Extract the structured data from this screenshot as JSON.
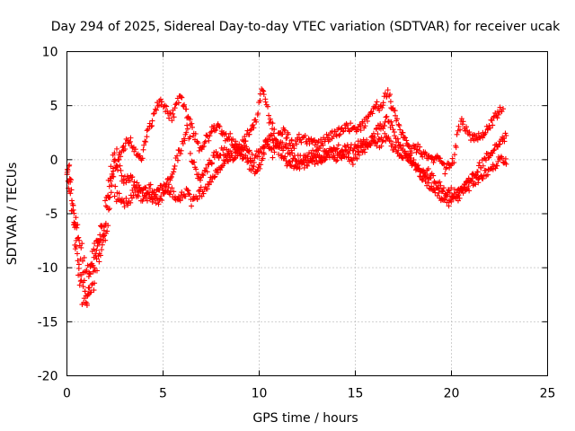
{
  "chart_data": {
    "type": "scatter",
    "title": "Day 294 of 2025, Sidereal Day-to-day VTEC variation (SDTVAR) for receiver ucak",
    "xlabel": "GPS time / hours",
    "ylabel": "SDTVAR / TECUs",
    "xlim": [
      0,
      25
    ],
    "ylim": [
      -20,
      10
    ],
    "xticks": [
      0,
      5,
      10,
      15,
      20,
      25
    ],
    "yticks": [
      -20,
      -15,
      -10,
      -5,
      0,
      5,
      10
    ],
    "xtick_labels": [
      "0",
      "5",
      "10",
      "15",
      "20",
      "25"
    ],
    "ytick_labels": [
      "-20",
      "-15",
      "-10",
      "-5",
      "0",
      "5",
      "10"
    ],
    "grid": true,
    "marker": "+",
    "color": "#ff0000",
    "series": [
      {
        "name": "SDTVAR",
        "trace_x": [
          0,
          0.15,
          0.3,
          0.45,
          0.6,
          0.75,
          0.9,
          1.05,
          1.2,
          1.35,
          1.5,
          1.7,
          1.9,
          2.1,
          2.3,
          2.5,
          2.7,
          2.9,
          3.1,
          3.3,
          3.5,
          3.7,
          3.9,
          4.1,
          4.3,
          4.5,
          4.7,
          4.9,
          5.1,
          5.3,
          5.5,
          5.7,
          5.9,
          6.1,
          6.3,
          6.5,
          6.7,
          6.9,
          7.1,
          7.3,
          7.5,
          7.7,
          7.9,
          8.1,
          8.3,
          8.5,
          8.7,
          8.9,
          9.1,
          9.3,
          9.5,
          9.7,
          9.9,
          10.1,
          10.3,
          10.5,
          10.7,
          10.9,
          11.1,
          11.3,
          11.5,
          11.7,
          11.9,
          12.1,
          12.3,
          12.5,
          12.7,
          12.9,
          13.1,
          13.3,
          13.5,
          13.7,
          13.9,
          14.1,
          14.3,
          14.5,
          14.7,
          14.9,
          15.1,
          15.3,
          15.5,
          15.7,
          15.9,
          16.1,
          16.3,
          16.5,
          16.7,
          16.9,
          17.1,
          17.3,
          17.5,
          17.7,
          17.9,
          18.1,
          18.3,
          18.5,
          18.7,
          18.9,
          19.1,
          19.3,
          19.5,
          19.7,
          19.9,
          20.1,
          20.3,
          20.5,
          20.7,
          20.9,
          21.1,
          21.3,
          21.5,
          21.7,
          21.9,
          22.1,
          22.3,
          22.5,
          22.7,
          22.9
        ],
        "trace_y": [
          -1.5,
          -2,
          -4.5,
          -7,
          -9,
          -10.5,
          -12,
          -12.5,
          -11,
          -10,
          -9,
          -7.5,
          -6.5,
          -4,
          -1.5,
          -1,
          -0.5,
          -2,
          -2,
          -1.5,
          -2,
          -2.5,
          -3,
          -3,
          -2.5,
          -3,
          -3,
          -2.5,
          -2.5,
          -2,
          -1,
          0,
          1,
          2,
          3,
          0,
          -1,
          -2,
          -1.5,
          -1,
          0,
          0.5,
          0.5,
          1,
          0.5,
          0.5,
          0,
          0.5,
          1,
          1.5,
          0.5,
          0,
          0.5,
          1,
          1.5,
          1,
          0.5,
          1.5,
          1.5,
          1,
          1,
          0.5,
          0,
          0,
          0,
          0,
          0.5,
          0.5,
          0.5,
          0.5,
          0.5,
          0.5,
          0.5,
          0,
          0.5,
          1,
          1,
          1,
          1.5,
          1.5,
          1.5,
          1.5,
          2,
          1.5,
          1.5,
          2,
          2,
          1.5,
          1,
          0.5,
          0,
          0,
          0,
          -0.5,
          -1,
          -1,
          -1,
          -1.5,
          -2,
          -2.5,
          -2.5,
          -3,
          -3,
          -3,
          -3.5,
          -3,
          -2.5,
          -2,
          -1.5,
          -1,
          -0.5,
          0,
          0.5,
          1,
          1,
          1.5,
          2,
          2
        ],
        "trace_y_alt": [
          -1.5,
          -3,
          -5,
          -8,
          -10,
          -12,
          -13,
          -13.5,
          -12,
          -11.5,
          -10,
          -9,
          -8.5,
          -6,
          -2,
          -3,
          -3.5,
          -4,
          -4,
          -3.5,
          -3,
          -3,
          -3.5,
          -3.5,
          -3.5,
          -3.5,
          -4,
          -3.5,
          -3,
          -3,
          -3,
          -3.5,
          -3.5,
          -3,
          -3,
          -4,
          -3.5,
          -3,
          -3,
          -2.5,
          -2,
          -1.5,
          -1,
          -0.5,
          0,
          0.5,
          1,
          1,
          0.5,
          0,
          -0.5,
          -1,
          -1,
          -0.5,
          1,
          2,
          2,
          1.5,
          0.5,
          0,
          -0.5,
          -0.5,
          -0.5,
          -0.5,
          -0.5,
          -0.5,
          0,
          0,
          0,
          0,
          0.5,
          1,
          1,
          1,
          0.5,
          0.5,
          0,
          0,
          0.5,
          1,
          1,
          1.5,
          2,
          2.5,
          3,
          3.5,
          4,
          3,
          2,
          1.5,
          1,
          0.5,
          0,
          -0.5,
          -1,
          -1.5,
          -2,
          -2.5,
          -3,
          -3,
          -3.5,
          -3.5,
          -4,
          -3.5,
          -3,
          -2.5,
          -2.5,
          -2.5,
          -2,
          -2,
          -1.5,
          -1.5,
          -1,
          -0.5,
          -0.5,
          0,
          0,
          0
        ],
        "trace_y_upper": [
          -1,
          -1,
          -4,
          -6,
          -7,
          -8.5,
          -10,
          -11,
          -10,
          -9,
          -8,
          -7,
          -6,
          -3,
          -1,
          0,
          0.5,
          1,
          1.5,
          2,
          1,
          0.5,
          0,
          2,
          3,
          4,
          5,
          5.5,
          5,
          4,
          4,
          5,
          6,
          5,
          4,
          3,
          2,
          1,
          1.5,
          2,
          2.5,
          3,
          3,
          2.5,
          2,
          2,
          1.5,
          1,
          1.5,
          2,
          2.5,
          3,
          4,
          6.5,
          6,
          4,
          3,
          2,
          2.5,
          2.5,
          2,
          1.5,
          1.5,
          2,
          2,
          1.5,
          1.5,
          1.5,
          1.5,
          1.5,
          2,
          2,
          2.5,
          2.5,
          3,
          3,
          3,
          3,
          3,
          3,
          3.5,
          4,
          4.5,
          5,
          5,
          5.5,
          6.5,
          5,
          4,
          3,
          2,
          1.5,
          1,
          1,
          1,
          0.5,
          0.5,
          0,
          0,
          0,
          -0.5,
          -1,
          -0.5,
          0,
          2,
          3.5,
          3,
          2.5,
          2,
          2,
          2,
          2.5,
          3,
          3.5,
          4,
          4.5,
          4.5
        ]
      }
    ]
  }
}
